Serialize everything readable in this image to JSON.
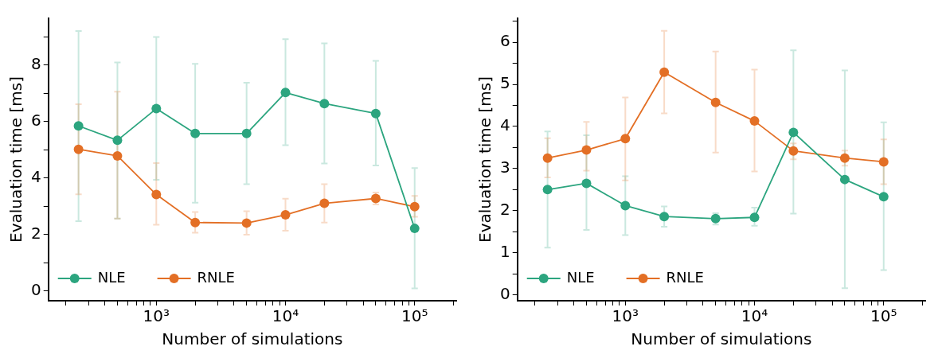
{
  "chart_data": [
    {
      "type": "line",
      "xlabel": "Number of simulations",
      "ylabel": "Evaluation time [ms]",
      "log": "x",
      "grid": false,
      "legend": "bottom left",
      "marker": "circle",
      "line_style": "solid",
      "x": [
        250,
        500,
        1000,
        2000,
        5000,
        10000,
        20000,
        50000,
        100000
      ],
      "xlim": [
        146,
        210000
      ],
      "ylim": [
        -0.35,
        9.65
      ],
      "xticks": [
        {
          "value": 200,
          "label": null
        },
        {
          "value": 300,
          "label": null
        },
        {
          "value": 400,
          "label": null
        },
        {
          "value": 500,
          "label": null
        },
        {
          "value": 600,
          "label": null
        },
        {
          "value": 700,
          "label": null
        },
        {
          "value": 800,
          "label": null
        },
        {
          "value": 900,
          "label": null
        },
        {
          "value": 1000,
          "label": "10³"
        },
        {
          "value": 2000,
          "label": null
        },
        {
          "value": 3000,
          "label": null
        },
        {
          "value": 4000,
          "label": null
        },
        {
          "value": 5000,
          "label": null
        },
        {
          "value": 6000,
          "label": null
        },
        {
          "value": 7000,
          "label": null
        },
        {
          "value": 8000,
          "label": null
        },
        {
          "value": 9000,
          "label": null
        },
        {
          "value": 10000,
          "label": "10⁴"
        },
        {
          "value": 20000,
          "label": null
        },
        {
          "value": 30000,
          "label": null
        },
        {
          "value": 40000,
          "label": null
        },
        {
          "value": 50000,
          "label": null
        },
        {
          "value": 60000,
          "label": null
        },
        {
          "value": 70000,
          "label": null
        },
        {
          "value": 80000,
          "label": null
        },
        {
          "value": 90000,
          "label": null
        },
        {
          "value": 100000,
          "label": "10⁵"
        },
        {
          "value": 200000,
          "label": null
        }
      ],
      "yticks": [
        0,
        {
          "value": 1,
          "label": null
        },
        2,
        {
          "value": 3,
          "label": null
        },
        4,
        {
          "value": 5,
          "label": null
        },
        6,
        {
          "value": 7,
          "label": null
        },
        8,
        {
          "value": 9,
          "label": null
        }
      ],
      "series": [
        {
          "name": "NLE",
          "color": "#2ca57f",
          "values": [
            5.84,
            5.33,
            6.45,
            5.57,
            5.57,
            7.02,
            6.63,
            6.28,
            2.21
          ],
          "errors": [
            [
              2.47,
              9.2
            ],
            [
              2.56,
              8.09
            ],
            [
              3.93,
              8.99
            ],
            [
              3.12,
              8.04
            ],
            [
              3.78,
              7.37
            ],
            [
              5.16,
              8.91
            ],
            [
              4.51,
              8.76
            ],
            [
              4.44,
              8.14
            ],
            [
              0.09,
              4.35
            ]
          ]
        },
        {
          "name": "RNLE",
          "color": "#e36f25",
          "values": [
            5.01,
            4.78,
            3.41,
            2.42,
            2.4,
            2.69,
            3.1,
            3.27,
            2.98
          ],
          "errors": [
            [
              3.42,
              6.61
            ],
            [
              2.56,
              7.05
            ],
            [
              2.34,
              4.52
            ],
            [
              2.06,
              2.79
            ],
            [
              1.99,
              2.82
            ],
            [
              2.13,
              3.26
            ],
            [
              2.42,
              3.78
            ],
            [
              3.06,
              3.48
            ],
            [
              2.62,
              3.36
            ]
          ]
        }
      ]
    },
    {
      "type": "line",
      "xlabel": "Number of simulations",
      "ylabel": "Evaluation time [ms]",
      "log": "x",
      "grid": false,
      "legend": "bottom left",
      "marker": "circle",
      "line_style": "solid",
      "x": [
        250,
        500,
        1000,
        2000,
        5000,
        10000,
        20000,
        50000,
        100000
      ],
      "xlim": [
        146,
        210000
      ],
      "ylim": [
        -0.14,
        6.57
      ],
      "xticks": [
        {
          "value": 200,
          "label": null
        },
        {
          "value": 300,
          "label": null
        },
        {
          "value": 400,
          "label": null
        },
        {
          "value": 500,
          "label": null
        },
        {
          "value": 600,
          "label": null
        },
        {
          "value": 700,
          "label": null
        },
        {
          "value": 800,
          "label": null
        },
        {
          "value": 900,
          "label": null
        },
        {
          "value": 1000,
          "label": "10³"
        },
        {
          "value": 2000,
          "label": null
        },
        {
          "value": 3000,
          "label": null
        },
        {
          "value": 4000,
          "label": null
        },
        {
          "value": 5000,
          "label": null
        },
        {
          "value": 6000,
          "label": null
        },
        {
          "value": 7000,
          "label": null
        },
        {
          "value": 8000,
          "label": null
        },
        {
          "value": 9000,
          "label": null
        },
        {
          "value": 10000,
          "label": "10⁴"
        },
        {
          "value": 20000,
          "label": null
        },
        {
          "value": 30000,
          "label": null
        },
        {
          "value": 40000,
          "label": null
        },
        {
          "value": 50000,
          "label": null
        },
        {
          "value": 60000,
          "label": null
        },
        {
          "value": 70000,
          "label": null
        },
        {
          "value": 80000,
          "label": null
        },
        {
          "value": 90000,
          "label": null
        },
        {
          "value": 100000,
          "label": "10⁵"
        },
        {
          "value": 200000,
          "label": null
        }
      ],
      "yticks": [
        0,
        {
          "value": 0.5,
          "label": null
        },
        1,
        {
          "value": 1.5,
          "label": null
        },
        2,
        {
          "value": 2.5,
          "label": null
        },
        3,
        {
          "value": 3.5,
          "label": null
        },
        4,
        {
          "value": 4.5,
          "label": null
        },
        5,
        {
          "value": 5.5,
          "label": null
        },
        6,
        {
          "value": 6.5,
          "label": null
        }
      ],
      "series": [
        {
          "name": "NLE",
          "color": "#2ca57f",
          "values": [
            2.5,
            2.65,
            2.12,
            1.86,
            1.81,
            1.84,
            3.86,
            2.74,
            2.33
          ],
          "errors": [
            [
              1.12,
              3.88
            ],
            [
              1.54,
              3.79
            ],
            [
              1.42,
              2.82
            ],
            [
              1.62,
              2.1
            ],
            [
              1.67,
              1.94
            ],
            [
              1.64,
              2.07
            ],
            [
              1.93,
              5.81
            ],
            [
              0.16,
              5.33
            ],
            [
              0.59,
              4.1
            ]
          ]
        },
        {
          "name": "RNLE",
          "color": "#e36f25",
          "values": [
            3.25,
            3.44,
            3.71,
            5.29,
            4.57,
            4.13,
            3.42,
            3.25,
            3.16
          ],
          "errors": [
            [
              2.79,
              3.72
            ],
            [
              2.95,
              4.11
            ],
            [
              2.72,
              4.69
            ],
            [
              4.31,
              6.27
            ],
            [
              3.38,
              5.78
            ],
            [
              2.93,
              5.35
            ],
            [
              3.22,
              3.6
            ],
            [
              3.07,
              3.43
            ],
            [
              2.63,
              3.69
            ]
          ]
        }
      ]
    }
  ]
}
